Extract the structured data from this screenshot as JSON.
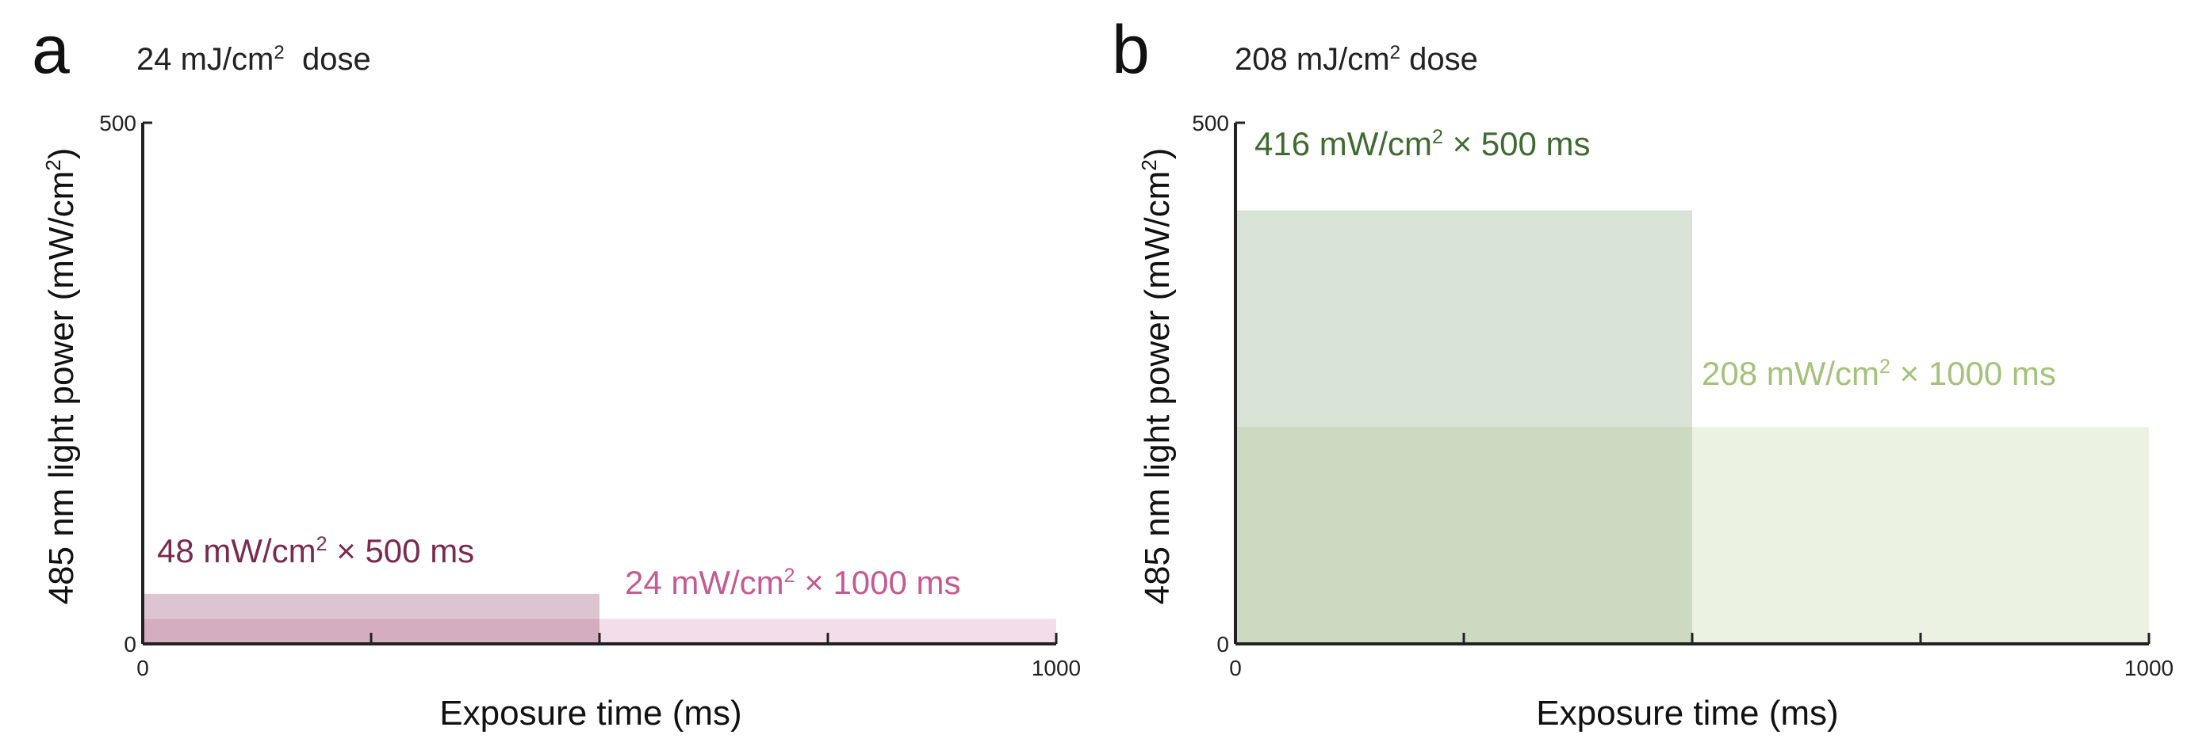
{
  "figure": {
    "panels": [
      {
        "letter": "a",
        "title_main": "24 mJ/cm",
        "title_sup": "2",
        "title_rest": "  dose"
      },
      {
        "letter": "b",
        "title_main": "208 mJ/cm",
        "title_sup": "2",
        "title_rest": " dose"
      }
    ]
  },
  "chart_data": [
    {
      "type": "bar",
      "panel": "a",
      "title": "24 mJ/cm² dose",
      "xlabel": "Exposure time (ms)",
      "ylabel": "485 nm light power (mW/cm²)",
      "ylabel_main": "485 nm light power (mW/cm",
      "ylabel_sup": "2",
      "ylabel_tail": ")",
      "xlim": [
        0,
        1000
      ],
      "ylim": [
        0,
        500
      ],
      "x_tick_labels": [
        "0",
        "1000"
      ],
      "y_tick_labels": [
        "0",
        "500"
      ],
      "x_minor_ticks": [
        250,
        500,
        750,
        1000
      ],
      "series": [
        {
          "name": "48 mW/cm² × 500 ms",
          "label_main": "48 mW/cm",
          "label_sup": "2",
          "label_rest": " × 500 ms",
          "power": 48,
          "duration": 500,
          "color": "#7a2a50",
          "fill": "#8a3f62",
          "fill_opacity": 0.3
        },
        {
          "name": "24 mW/cm² × 1000 ms",
          "label_main": "24 mW/cm",
          "label_sup": "2",
          "label_rest": " × 1000 ms",
          "power": 24,
          "duration": 1000,
          "color": "#c45a93",
          "fill": "#d98fb8",
          "fill_opacity": 0.3
        }
      ]
    },
    {
      "type": "bar",
      "panel": "b",
      "title": "208 mJ/cm² dose",
      "xlabel": "Exposure time (ms)",
      "ylabel": "485 nm light power (mW/cm²)",
      "ylabel_main": "485 nm light power (mW/cm",
      "ylabel_sup": "2",
      "ylabel_tail": ")",
      "xlim": [
        0,
        1000
      ],
      "ylim": [
        0,
        500
      ],
      "x_tick_labels": [
        "0",
        "1000"
      ],
      "y_tick_labels": [
        "0",
        "500"
      ],
      "x_minor_ticks": [
        250,
        500,
        750,
        1000
      ],
      "series": [
        {
          "name": "416 mW/cm² × 500 ms",
          "label_main": "416 mW/cm",
          "label_sup": "2",
          "label_rest": " × 500 ms",
          "power": 416,
          "duration": 500,
          "color": "#3f6b30",
          "fill": "#8fae88",
          "fill_opacity": 0.35
        },
        {
          "name": "208 mW/cm² × 1000 ms",
          "label_main": "208 mW/cm",
          "label_sup": "2",
          "label_rest": " × 1000 ms",
          "power": 208,
          "duration": 1000,
          "color": "#a3c27a",
          "fill": "#c9d9a8",
          "fill_opacity": 0.35
        }
      ]
    }
  ]
}
